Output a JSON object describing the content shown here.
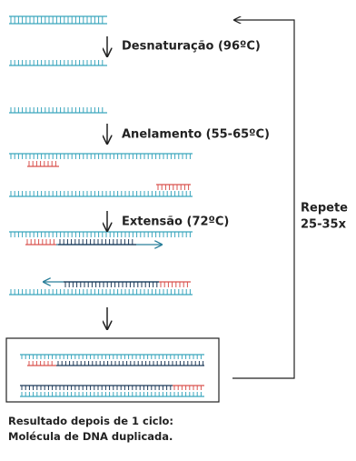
{
  "steps": [
    {
      "label": "Desnaturação (96ºC)"
    },
    {
      "label": "Anelamento (55-65ºC)"
    },
    {
      "label": "Extensão (72ºC)"
    }
  ],
  "repeat": {
    "lines": [
      "Repete",
      "25-35x"
    ]
  },
  "result": {
    "lines": [
      "Resultado depois de 1 ciclo:",
      "Molécula de DNA duplicada."
    ]
  }
}
